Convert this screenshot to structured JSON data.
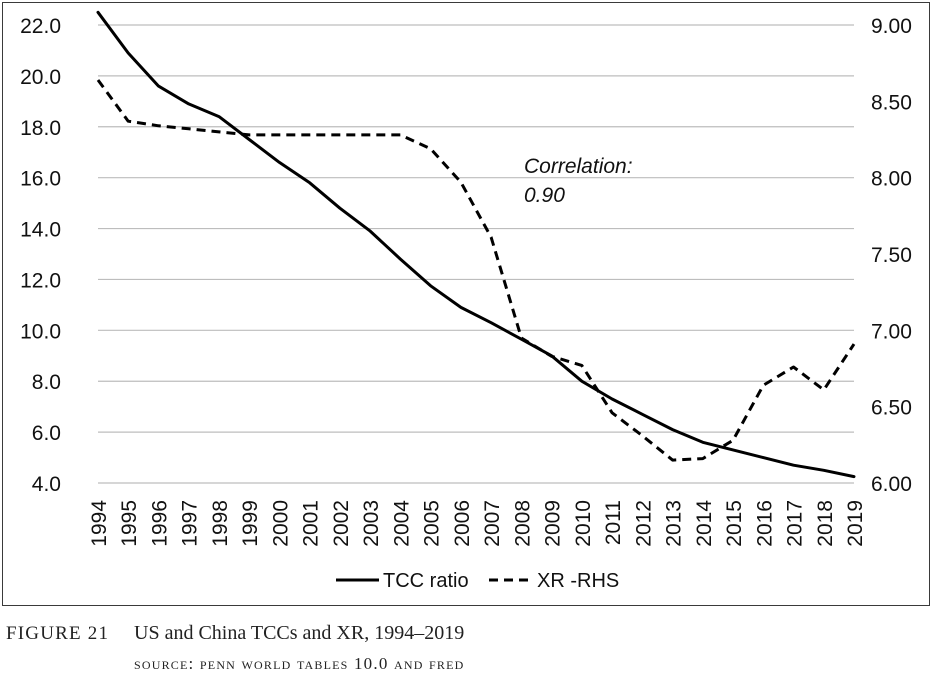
{
  "chart_data": {
    "type": "line",
    "categories": [
      "1994",
      "1995",
      "1996",
      "1997",
      "1998",
      "1999",
      "2000",
      "2001",
      "2002",
      "2003",
      "2004",
      "2005",
      "2006",
      "2007",
      "2008",
      "2009",
      "2010",
      "2011",
      "2012",
      "2013",
      "2014",
      "2015",
      "2016",
      "2017",
      "2018",
      "2019"
    ],
    "series": [
      {
        "name": "TCC ratio",
        "axis": "left",
        "style": "solid",
        "values": [
          22.5,
          20.9,
          19.6,
          18.9,
          18.4,
          17.5,
          16.6,
          15.8,
          14.8,
          13.9,
          12.8,
          11.75,
          10.9,
          10.3,
          9.65,
          9.0,
          8.0,
          7.3,
          6.7,
          6.1,
          5.6,
          5.3,
          5.0,
          4.7,
          4.5,
          4.25
        ]
      },
      {
        "name": "XR -RHS",
        "axis": "right",
        "style": "dashed",
        "values": [
          8.64,
          8.37,
          8.34,
          8.32,
          8.3,
          8.28,
          8.28,
          8.28,
          8.28,
          8.28,
          8.28,
          8.19,
          7.97,
          7.61,
          6.95,
          6.83,
          6.77,
          6.46,
          6.31,
          6.15,
          6.16,
          6.28,
          6.64,
          6.76,
          6.61,
          6.91
        ]
      }
    ],
    "yleft": {
      "ylim": [
        4.0,
        22.0
      ],
      "ticks": [
        "4.0",
        "6.0",
        "8.0",
        "10.0",
        "12.0",
        "14.0",
        "16.0",
        "18.0",
        "20.0",
        "22.0"
      ]
    },
    "yright": {
      "ylim": [
        6.0,
        9.0
      ],
      "ticks": [
        "6.00",
        "6.50",
        "7.00",
        "7.50",
        "8.00",
        "8.50",
        "9.00"
      ]
    },
    "grid": true,
    "legend_position": "bottom",
    "annotation": {
      "line1": "Correlation:",
      "line2": "0.90"
    }
  },
  "caption": {
    "label": "FIGURE 21",
    "title": "US and China TCCs and XR, 1994–2019",
    "source": "SOURCE: PENN WORLD TABLES 10.0 AND FRED"
  }
}
